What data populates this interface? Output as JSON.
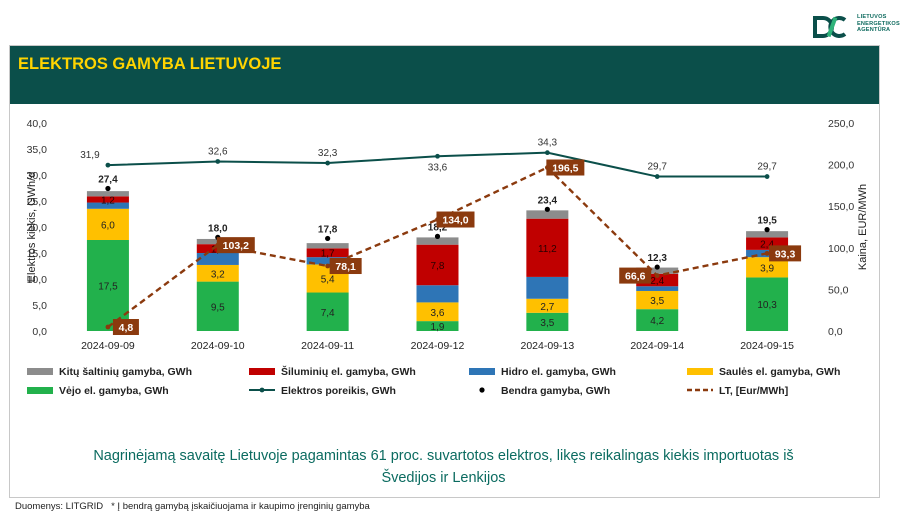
{
  "logo": {
    "lines": [
      "LIETUVOS",
      "ENERGETIKOS",
      "AGENTŪRA"
    ]
  },
  "title": "ELEKTROS GAMYBA LIETUVOJE",
  "summary": [
    "Nagrinėjamą savaitę Lietuvoje pagamintas 61 proc. suvartotos elektros, likęs reikalingas kiekis importuotas iš",
    "Švedijos ir Lenkijos"
  ],
  "footnote": {
    "source": "Duomenys: LITGRID",
    "note": "* Į bendrą gamybą įskaičiuojama ir kaupimo įrenginių gamyba"
  },
  "colors": {
    "kiti": "#8c8c8c",
    "siluminiu": "#c00000",
    "hidro": "#2e75b6",
    "saules": "#ffc000",
    "vejo": "#22b14c",
    "poreikis": "#0b4f4a",
    "kaina": "#8b3a0e",
    "title_band": "#0b4f4a",
    "title_text": "#ffd400"
  },
  "chart_data": {
    "type": "bar",
    "stacked": true,
    "categories": [
      "2024-09-09",
      "2024-09-10",
      "2024-09-11",
      "2024-09-12",
      "2024-09-13",
      "2024-09-14",
      "2024-09-15"
    ],
    "ylabel": "Elektros kiekis, GWh/d",
    "y2label": "Kaina, EUR/MWh",
    "ylim": [
      0,
      40
    ],
    "y2lim": [
      0,
      250
    ],
    "yticks": [
      "0,0",
      "5,0",
      "10,0",
      "15,0",
      "20,0",
      "25,0",
      "30,0",
      "35,0",
      "40,0"
    ],
    "y2ticks": [
      "0,0",
      "50,0",
      "100,0",
      "150,0",
      "200,0",
      "250,0"
    ],
    "series": [
      {
        "key": "vejo",
        "name": "Vėjo el. gamyba, GWh",
        "values": [
          17.5,
          9.5,
          7.4,
          1.9,
          3.5,
          4.2,
          10.3
        ],
        "labels": [
          "17,5",
          "9,5",
          "7,4",
          "1,9",
          "3,5",
          "4,2",
          "10,3"
        ]
      },
      {
        "key": "saules",
        "name": "Saulės el. gamyba, GWh",
        "values": [
          6.0,
          3.2,
          5.4,
          3.6,
          2.7,
          3.5,
          3.9
        ],
        "labels": [
          "6,0",
          "3,2",
          "5,4",
          "3,6",
          "2,7",
          "3,5",
          "3,9"
        ]
      },
      {
        "key": "hidro",
        "name": "Hidro el. gamyba, GWh",
        "values": [
          1.2,
          2.3,
          1.4,
          3.3,
          4.2,
          0.9,
          1.4
        ],
        "labels": [
          "",
          "",
          "",
          "",
          "",
          "",
          ""
        ]
      },
      {
        "key": "siluminiu",
        "name": "Šiluminių el. gamyba, GWh",
        "values": [
          1.2,
          1.7,
          1.7,
          7.8,
          11.2,
          2.4,
          2.4
        ],
        "labels": [
          "1,2",
          "1,7",
          "1,7",
          "7,8",
          "11,2",
          "2,4",
          "2,4"
        ]
      },
      {
        "key": "kiti",
        "name": "Kitų šaltinių gamyba,  GWh",
        "values": [
          1.0,
          1.0,
          1.0,
          1.4,
          1.6,
          1.2,
          1.2
        ],
        "labels": [
          "",
          "",
          "",
          "",
          "",
          "",
          ""
        ]
      }
    ],
    "total": {
      "name": "Bendra gamyba, GWh",
      "values": [
        27.4,
        18.0,
        17.8,
        18.2,
        23.4,
        12.3,
        19.5
      ],
      "labels": [
        "27,4",
        "18,0",
        "17,8",
        "18,2",
        "23,4",
        "12,3",
        "19,5"
      ]
    },
    "demand": {
      "name": "Elektros poreikis, GWh",
      "values": [
        31.9,
        32.6,
        32.3,
        33.6,
        34.3,
        29.7,
        29.7
      ],
      "labels": [
        "31,9",
        "32,6",
        "32,3",
        "33,6",
        "34,3",
        "29,7",
        "29,7"
      ]
    },
    "price": {
      "name": "LT, [Eur/MWh]",
      "values": [
        4.8,
        103.2,
        78.1,
        134.0,
        196.5,
        66.6,
        93.3
      ],
      "labels": [
        "4,8",
        "103,2",
        "78,1",
        "134,0",
        "196,5",
        "66,6",
        "93,3"
      ]
    },
    "legend": [
      "Kitų šaltinių gamyba,  GWh",
      "Šiluminių el. gamyba, GWh",
      "Hidro el. gamyba, GWh",
      "Saulės el. gamyba, GWh",
      "Vėjo el. gamyba, GWh",
      "Elektros poreikis, GWh",
      "Bendra gamyba, GWh",
      "LT, [Eur/MWh]"
    ]
  }
}
